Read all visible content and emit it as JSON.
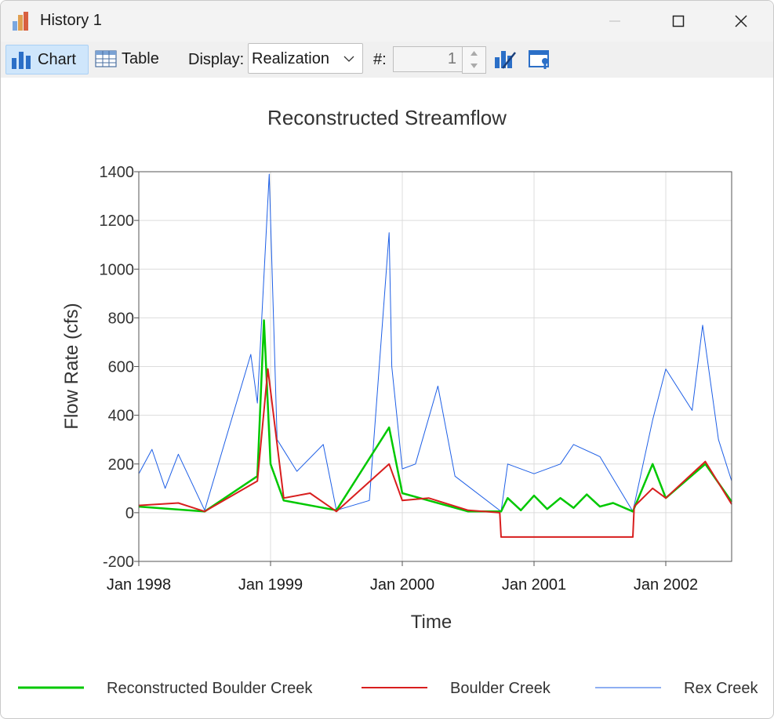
{
  "window": {
    "title": "History 1"
  },
  "toolbar": {
    "chart_label": "Chart",
    "table_label": "Table",
    "display_label": "Display:",
    "display_value": "Realization",
    "number_label": "#:",
    "number_value": "1"
  },
  "colors": {
    "accent": "#2b6fc7",
    "boulder_recon": "#00c800",
    "boulder": "#d81e1e",
    "rex": "#1e5fe6"
  },
  "chart_data": {
    "type": "line",
    "title": "Reconstructed Streamflow",
    "xlabel": "Time",
    "ylabel": "Flow Rate (cfs)",
    "ylim": [
      -200,
      1400
    ],
    "yticks": [
      -200,
      0,
      200,
      400,
      600,
      800,
      1000,
      1200,
      1400
    ],
    "xlim": [
      "1998-01",
      "2002-07"
    ],
    "xticks": [
      "Jan 1998",
      "Jan 1999",
      "Jan 2000",
      "Jan 2001",
      "Jan 2002"
    ],
    "grid": true,
    "legend": "bottom",
    "series": [
      {
        "name": "Reconstructed Boulder Creek",
        "color": "#00c800",
        "x": [
          1998.0,
          1998.5,
          1998.9,
          1998.95,
          1999.0,
          1999.1,
          1999.5,
          1999.9,
          2000.0,
          2000.5,
          2000.75,
          2000.8,
          2000.9,
          2001.0,
          2001.1,
          2001.2,
          2001.3,
          2001.4,
          2001.5,
          2001.6,
          2001.75,
          2001.9,
          2002.0,
          2002.3,
          2002.5
        ],
        "values": [
          25,
          5,
          150,
          790,
          200,
          50,
          10,
          350,
          80,
          5,
          5,
          60,
          10,
          70,
          15,
          60,
          20,
          75,
          25,
          40,
          5,
          200,
          60,
          200,
          45
        ]
      },
      {
        "name": "Boulder Creek",
        "color": "#d81e1e",
        "x": [
          1998.0,
          1998.3,
          1998.5,
          1998.9,
          1998.98,
          1999.1,
          1999.3,
          1999.5,
          1999.9,
          2000.0,
          2000.2,
          2000.5,
          2000.74,
          2000.75,
          2001.75,
          2001.76,
          2001.9,
          2002.0,
          2002.3,
          2002.5
        ],
        "values": [
          30,
          40,
          5,
          130,
          590,
          60,
          80,
          5,
          200,
          50,
          60,
          10,
          0,
          -100,
          -100,
          25,
          100,
          60,
          210,
          35
        ]
      },
      {
        "name": "Rex Creek",
        "color": "#1e5fe6",
        "x": [
          1998.0,
          1998.1,
          1998.2,
          1998.3,
          1998.5,
          1998.85,
          1998.9,
          1998.99,
          1999.05,
          1999.2,
          1999.4,
          1999.5,
          1999.75,
          1999.9,
          1999.92,
          2000.0,
          2000.1,
          2000.27,
          2000.4,
          2000.75,
          2000.8,
          2001.0,
          2001.2,
          2001.3,
          2001.5,
          2001.75,
          2001.9,
          2002.0,
          2002.2,
          2002.28,
          2002.4,
          2002.5
        ],
        "values": [
          160,
          260,
          100,
          240,
          10,
          650,
          450,
          1390,
          300,
          170,
          280,
          10,
          50,
          1150,
          600,
          180,
          200,
          520,
          150,
          5,
          200,
          160,
          200,
          280,
          230,
          5,
          380,
          590,
          420,
          770,
          300,
          130
        ]
      }
    ]
  }
}
